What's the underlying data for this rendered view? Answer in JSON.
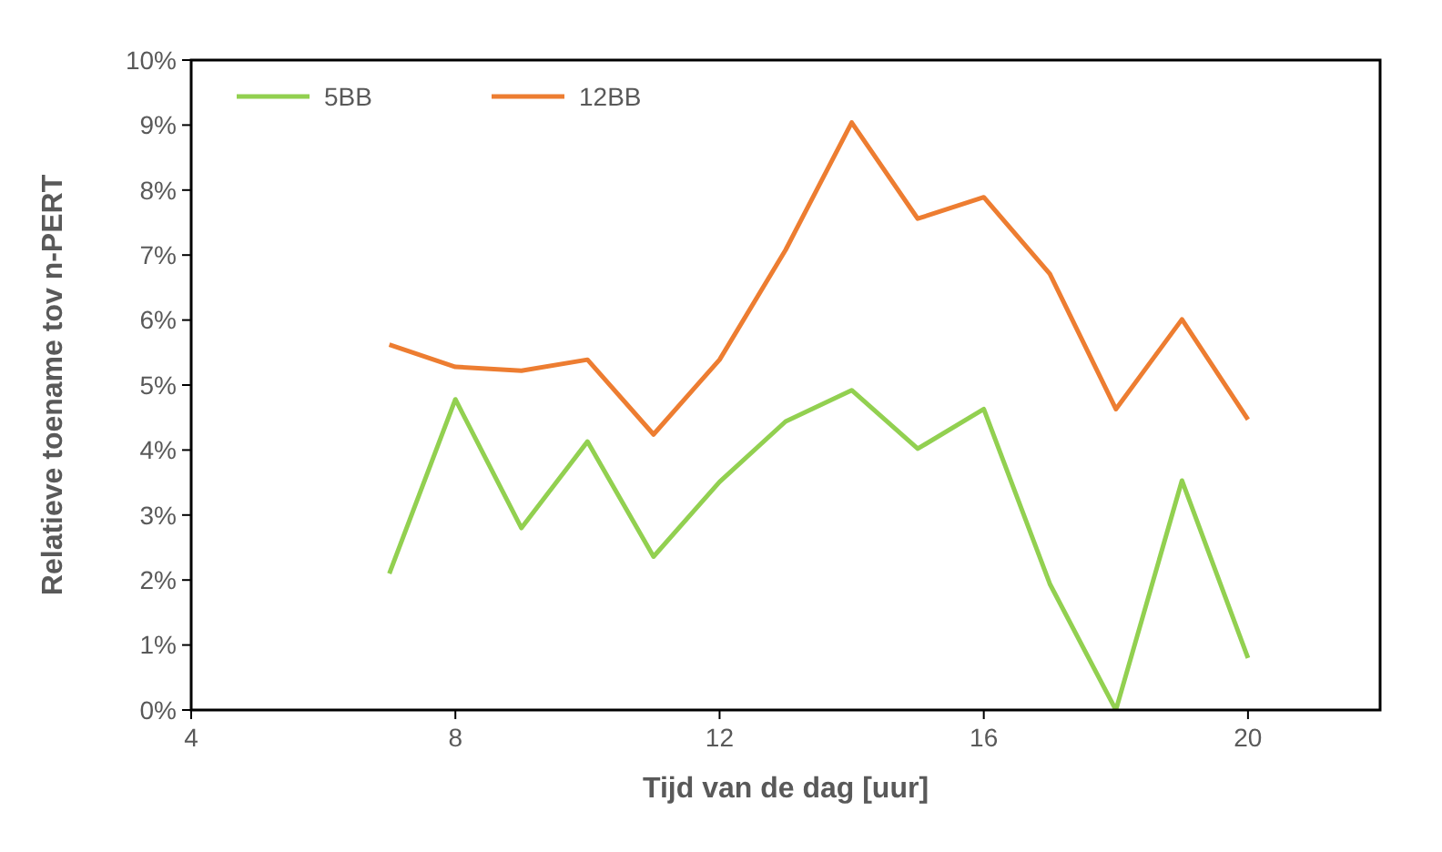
{
  "chart_data": {
    "type": "line",
    "xlabel": "Tijd van de dag [uur]",
    "ylabel": "Relatieve toename tov n-PERT",
    "x": [
      7,
      8,
      9,
      10,
      11,
      12,
      13,
      14,
      15,
      16,
      17,
      18,
      19,
      20
    ],
    "series": [
      {
        "name": "5BB",
        "color": "#92d050",
        "values": [
          2.1,
          4.78,
          2.8,
          4.13,
          2.36,
          3.51,
          4.44,
          4.92,
          4.02,
          4.63,
          1.94,
          0,
          3.53,
          0.8
        ]
      },
      {
        "name": "12BB",
        "color": "#ed7d31",
        "values": [
          5.62,
          5.28,
          5.22,
          5.39,
          4.24,
          5.39,
          7.08,
          9.04,
          7.56,
          7.89,
          6.71,
          4.63,
          6.01,
          4.47
        ]
      }
    ],
    "xlim": [
      4,
      22
    ],
    "xticks": [
      4,
      8,
      12,
      16,
      20
    ],
    "ylim": [
      0,
      10
    ],
    "yticks": [
      {
        "value": 0,
        "label": "0%"
      },
      {
        "value": 1,
        "label": "1%"
      },
      {
        "value": 2,
        "label": "2%"
      },
      {
        "value": 3,
        "label": "3%"
      },
      {
        "value": 4,
        "label": "4%"
      },
      {
        "value": 5,
        "label": "5%"
      },
      {
        "value": 6,
        "label": "6%"
      },
      {
        "value": 7,
        "label": "7%"
      },
      {
        "value": 8,
        "label": "8%"
      },
      {
        "value": 9,
        "label": "9%"
      },
      {
        "value": 10,
        "label": "10%"
      }
    ],
    "grid": false,
    "legend": "top left",
    "marker": "none",
    "line_style": "solid"
  }
}
